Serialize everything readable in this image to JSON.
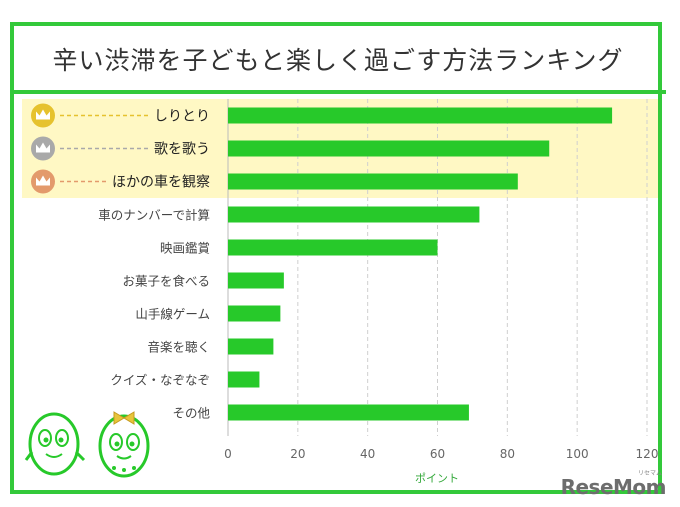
{
  "chart_data": {
    "type": "bar",
    "orientation": "horizontal",
    "title": "辛い渋滞を子どもと楽しく過ごす方法ランキング",
    "xlabel": "ポイント",
    "ylabel": "",
    "xlim": [
      0,
      120
    ],
    "xticks": [
      0,
      20,
      40,
      60,
      80,
      100,
      120
    ],
    "grid": "vertical-dashed",
    "categories": [
      "しりとり",
      "歌を歌う",
      "ほかの車を観察",
      "車のナンバーで計算",
      "映画鑑賞",
      "お菓子を食べる",
      "山手線ゲーム",
      "音楽を聴く",
      "クイズ・なぞなぞ",
      "その他"
    ],
    "values": [
      110,
      92,
      83,
      72,
      60,
      16,
      15,
      13,
      9,
      69
    ],
    "highlight_top": 3,
    "colors": {
      "bar": "#27c92a",
      "frame": "#33c93a",
      "highlight_band": "#fff8c4",
      "crown_gold": "#e6c22e",
      "crown_silver": "#a9a9a9",
      "crown_bronze": "#e39a6c"
    }
  },
  "brand": {
    "logo": "ReseMom",
    "logo_sub": "リセマム"
  }
}
